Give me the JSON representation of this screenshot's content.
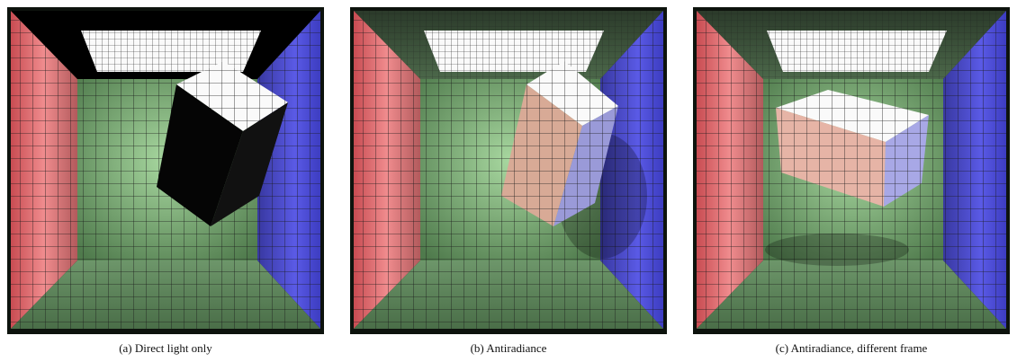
{
  "figure": {
    "captions": [
      "(a)  Direct light only",
      "(b)  Antiradiance",
      "(c)  Antiradiance, different frame"
    ]
  }
}
